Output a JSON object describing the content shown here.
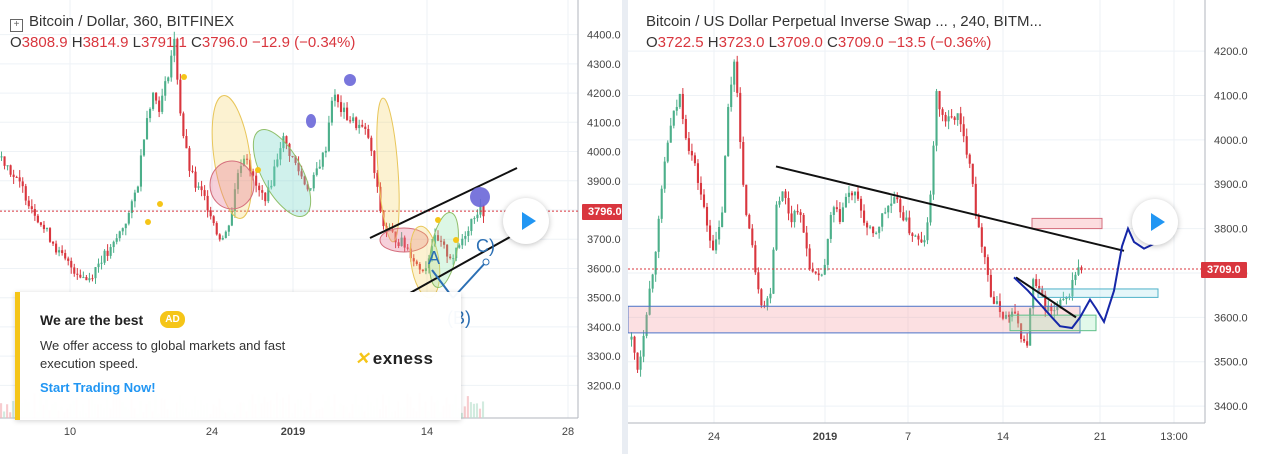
{
  "colors": {
    "up": "#4caf8a",
    "down": "#d9363e",
    "axis_text": "#444",
    "grid": "#eef2f6"
  },
  "left_panel": {
    "title": "Bitcoin / Dollar, 360, BITFINEX",
    "ohlc": {
      "o_label": "O",
      "o": "3808.9",
      "h_label": "H",
      "h": "3814.9",
      "l_label": "L",
      "l": "3791.1",
      "c_label": "C",
      "c": "3796.0",
      "change": "−12.9 (−0.34%)"
    },
    "last_price_label": "3796.0",
    "annotations": {
      "a": "A",
      "b": "(B)",
      "c": "C)"
    },
    "ad": {
      "heading": "We are the best",
      "badge": "AD",
      "text": "We offer access to global markets and fast execution speed.",
      "cta": "Start Trading Now!",
      "brand": "exness"
    }
  },
  "right_panel": {
    "title": "Bitcoin / US Dollar Perpetual Inverse Swap ... , 240, BITM...",
    "ohlc": {
      "o_label": "O",
      "o": "3722.5",
      "h_label": "H",
      "h": "3723.0",
      "l_label": "L",
      "l": "3709.0",
      "c_label": "C",
      "c": "3709.0",
      "change": "−13.5 (−0.36%)"
    },
    "last_price_label": "3709.0"
  },
  "chart_data": [
    {
      "type": "candlestick",
      "title": "Bitcoin / Dollar, 360, BITFINEX",
      "ylim": [
        3150,
        4450
      ],
      "y_ticks": [
        "3200.0",
        "3300.0",
        "3400.0",
        "3500.0",
        "3600.0",
        "3700.0",
        "3800.0",
        "3900.0",
        "4000.0",
        "4100.0",
        "4200.0",
        "4300.0",
        "4400.0"
      ],
      "x_ticks": [
        "10",
        "24",
        "2019",
        "14",
        "28"
      ],
      "last_price": 3796.0,
      "series": [
        {
          "close_path": [
            3980,
            3950,
            3900,
            3870,
            3820,
            3780,
            3730,
            3700,
            3650,
            3620,
            3600,
            3580,
            3560,
            3600,
            3640,
            3650,
            3700,
            3750,
            3800,
            3900,
            4100,
            4200,
            4150,
            4250,
            4380,
            4100,
            3950,
            3880,
            3850,
            3800,
            3720,
            3700,
            3800,
            3950,
            4000,
            3900,
            3850,
            3850,
            3950,
            4050,
            4000,
            3950,
            3900,
            3870,
            3950,
            4000,
            4200,
            4150,
            4120,
            4100,
            4080,
            4050,
            3900,
            3750,
            3720,
            3700,
            3680,
            3650,
            3600,
            3610,
            3700,
            3680,
            3650,
            3640,
            3700,
            3750,
            3800,
            3796
          ]
        }
      ]
    },
    {
      "type": "candlestick",
      "title": "Bitcoin / US Dollar Perpetual Inverse Swap ... , 240, BITM...",
      "ylim": [
        3380,
        4270
      ],
      "y_ticks": [
        "3400.0",
        "3500.0",
        "3600.0",
        "3700.0",
        "3800.0",
        "3900.0",
        "4000.0",
        "4100.0",
        "4200.0"
      ],
      "x_ticks": [
        "24",
        "2019",
        "7",
        "14",
        "21",
        "13:00"
      ],
      "last_price": 3709.0,
      "series": [
        {
          "close_path": [
            3550,
            3480,
            3600,
            3700,
            3820,
            3980,
            4050,
            4100,
            4000,
            3950,
            3880,
            3800,
            3750,
            3820,
            4080,
            4200,
            3900,
            3800,
            3700,
            3620,
            3650,
            3870,
            3880,
            3820,
            3850,
            3780,
            3700,
            3680,
            3720,
            3850,
            3820,
            3870,
            3880,
            3850,
            3800,
            3780,
            3820,
            3850,
            3860,
            3840,
            3800,
            3780,
            3760,
            3820,
            4100,
            4050,
            4040,
            4060,
            4000,
            3950,
            3800,
            3750,
            3640,
            3620,
            3600,
            3610,
            3580,
            3520,
            3680,
            3650,
            3620,
            3610,
            3630,
            3640,
            3700,
            3709
          ]
        }
      ]
    }
  ]
}
